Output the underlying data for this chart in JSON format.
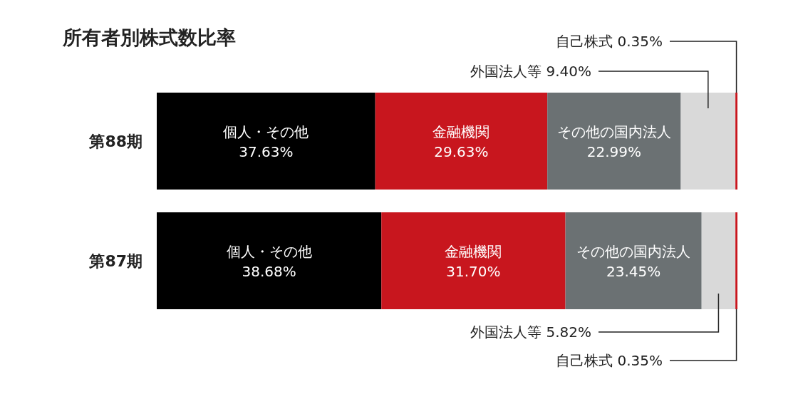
{
  "chart_data": {
    "type": "bar",
    "orientation": "horizontal",
    "stacked": true,
    "title": "所有者別株式数比率",
    "categories": [
      "第88期",
      "第87期"
    ],
    "series": [
      {
        "name": "個人・その他",
        "color": "#000000",
        "values": [
          37.63,
          38.68
        ],
        "value_labels": [
          "37.63%",
          "38.68%"
        ]
      },
      {
        "name": "金融機関",
        "color": "#c8161e",
        "values": [
          29.63,
          31.7
        ],
        "value_labels": [
          "29.63%",
          "31.70%"
        ]
      },
      {
        "name": "その他の国内法人",
        "color": "#6b7173",
        "values": [
          22.99,
          23.45
        ],
        "value_labels": [
          "22.99%",
          "23.45%"
        ]
      },
      {
        "name": "外国法人等",
        "color": "#d9d9d9",
        "values": [
          9.4,
          5.82
        ],
        "value_labels": [
          "9.40%",
          "5.82%"
        ]
      },
      {
        "name": "自己株式",
        "color": "#c8161e",
        "values": [
          0.35,
          0.35
        ],
        "value_labels": [
          "0.35%",
          "0.35%"
        ]
      }
    ]
  }
}
